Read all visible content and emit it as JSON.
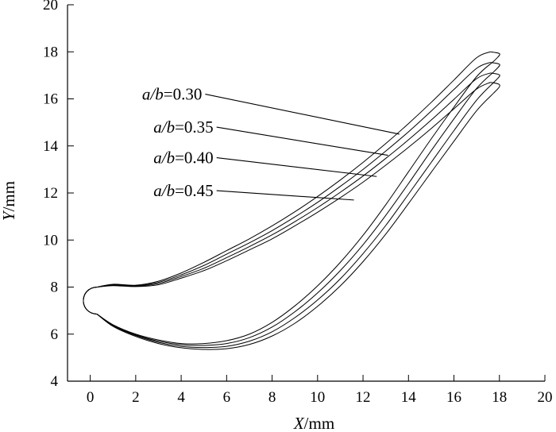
{
  "chart_data": {
    "type": "line",
    "title": "",
    "xlabel_var": "X",
    "xlabel_unit": "/mm",
    "ylabel_var": "Y",
    "ylabel_unit": "/mm",
    "xlim": [
      -1,
      20
    ],
    "ylim": [
      4,
      20
    ],
    "xticks": [
      0,
      2,
      4,
      6,
      8,
      10,
      12,
      14,
      16,
      18,
      20
    ],
    "yticks": [
      4,
      6,
      8,
      10,
      12,
      14,
      16,
      18,
      20
    ],
    "grid": false,
    "series": [
      {
        "name": "a/b=0.30",
        "label_var": "a/b",
        "label_val": "=0.30",
        "label_anchor": [
          3.6,
          16.2
        ],
        "leader_to": [
          13.6,
          14.5
        ],
        "suction_side": [
          [
            0.3,
            8.0
          ],
          [
            1,
            8.12
          ],
          [
            2,
            8.08
          ],
          [
            3,
            8.25
          ],
          [
            4,
            8.6
          ],
          [
            5,
            9.05
          ],
          [
            6,
            9.55
          ],
          [
            7,
            10.05
          ],
          [
            8,
            10.6
          ],
          [
            9,
            11.2
          ],
          [
            10,
            11.85
          ],
          [
            11,
            12.55
          ],
          [
            12,
            13.3
          ],
          [
            13,
            14.1
          ],
          [
            14,
            14.95
          ],
          [
            15,
            15.85
          ],
          [
            16,
            16.8
          ],
          [
            17,
            17.75
          ],
          [
            17.6,
            18.0
          ]
        ],
        "pressure_side": [
          [
            0.3,
            6.85
          ],
          [
            1,
            6.4
          ],
          [
            2,
            6.0
          ],
          [
            3,
            5.75
          ],
          [
            4,
            5.6
          ],
          [
            5,
            5.6
          ],
          [
            6,
            5.72
          ],
          [
            7,
            6.0
          ],
          [
            8,
            6.5
          ],
          [
            9,
            7.2
          ],
          [
            10,
            8.05
          ],
          [
            11,
            9.05
          ],
          [
            12,
            10.2
          ],
          [
            13,
            11.5
          ],
          [
            14,
            12.9
          ],
          [
            15,
            14.3
          ],
          [
            16,
            15.65
          ],
          [
            17,
            16.95
          ],
          [
            17.75,
            17.6
          ]
        ]
      },
      {
        "name": "a/b=0.35",
        "label_var": "a/b",
        "label_val": "=0.35",
        "label_anchor": [
          4.1,
          14.8
        ],
        "leader_to": [
          13.1,
          13.6
        ],
        "suction_side": [
          [
            0.3,
            8.0
          ],
          [
            1,
            8.1
          ],
          [
            2,
            8.06
          ],
          [
            3,
            8.2
          ],
          [
            4,
            8.52
          ],
          [
            5,
            8.92
          ],
          [
            6,
            9.4
          ],
          [
            7,
            9.88
          ],
          [
            8,
            10.4
          ],
          [
            9,
            10.98
          ],
          [
            10,
            11.6
          ],
          [
            11,
            12.28
          ],
          [
            12,
            13.0
          ],
          [
            13,
            13.78
          ],
          [
            14,
            14.6
          ],
          [
            15,
            15.48
          ],
          [
            16,
            16.4
          ],
          [
            17,
            17.3
          ],
          [
            17.6,
            17.55
          ]
        ],
        "pressure_side": [
          [
            0.3,
            6.85
          ],
          [
            1,
            6.38
          ],
          [
            2,
            5.97
          ],
          [
            3,
            5.7
          ],
          [
            4,
            5.55
          ],
          [
            5,
            5.52
          ],
          [
            6,
            5.6
          ],
          [
            7,
            5.85
          ],
          [
            8,
            6.3
          ],
          [
            9,
            6.95
          ],
          [
            10,
            7.75
          ],
          [
            11,
            8.7
          ],
          [
            12,
            9.8
          ],
          [
            13,
            11.05
          ],
          [
            14,
            12.4
          ],
          [
            15,
            13.8
          ],
          [
            16,
            15.15
          ],
          [
            17,
            16.45
          ],
          [
            17.75,
            17.15
          ]
        ]
      },
      {
        "name": "a/b=0.40",
        "label_var": "a/b",
        "label_val": "=0.40",
        "label_anchor": [
          4.1,
          13.5
        ],
        "leader_to": [
          12.6,
          12.7
        ],
        "suction_side": [
          [
            0.3,
            8.0
          ],
          [
            1,
            8.08
          ],
          [
            2,
            8.04
          ],
          [
            3,
            8.15
          ],
          [
            4,
            8.45
          ],
          [
            5,
            8.8
          ],
          [
            6,
            9.25
          ],
          [
            7,
            9.72
          ],
          [
            8,
            10.22
          ],
          [
            9,
            10.78
          ],
          [
            10,
            11.38
          ],
          [
            11,
            12.03
          ],
          [
            12,
            12.72
          ],
          [
            13,
            13.47
          ],
          [
            14,
            14.26
          ],
          [
            15,
            15.1
          ],
          [
            16,
            15.98
          ],
          [
            17,
            16.86
          ],
          [
            17.6,
            17.1
          ]
        ],
        "pressure_side": [
          [
            0.3,
            6.85
          ],
          [
            1,
            6.35
          ],
          [
            2,
            5.94
          ],
          [
            3,
            5.65
          ],
          [
            4,
            5.48
          ],
          [
            5,
            5.43
          ],
          [
            6,
            5.48
          ],
          [
            7,
            5.7
          ],
          [
            8,
            6.1
          ],
          [
            9,
            6.7
          ],
          [
            10,
            7.45
          ],
          [
            11,
            8.35
          ],
          [
            12,
            9.42
          ],
          [
            13,
            10.62
          ],
          [
            14,
            11.95
          ],
          [
            15,
            13.3
          ],
          [
            16,
            14.65
          ],
          [
            17,
            15.95
          ],
          [
            17.75,
            16.7
          ]
        ]
      },
      {
        "name": "a/b=0.45",
        "label_var": "a/b",
        "label_val": "=0.45",
        "label_anchor": [
          4.1,
          12.1
        ],
        "leader_to": [
          11.6,
          11.7
        ],
        "suction_side": [
          [
            0.3,
            8.0
          ],
          [
            1,
            8.06
          ],
          [
            2,
            8.02
          ],
          [
            3,
            8.1
          ],
          [
            4,
            8.38
          ],
          [
            5,
            8.7
          ],
          [
            6,
            9.12
          ],
          [
            7,
            9.58
          ],
          [
            8,
            10.05
          ],
          [
            9,
            10.6
          ],
          [
            10,
            11.18
          ],
          [
            11,
            11.8
          ],
          [
            12,
            12.46
          ],
          [
            13,
            13.18
          ],
          [
            14,
            13.94
          ],
          [
            15,
            14.74
          ],
          [
            16,
            15.58
          ],
          [
            17,
            16.42
          ],
          [
            17.6,
            16.7
          ]
        ],
        "pressure_side": [
          [
            0.3,
            6.85
          ],
          [
            1,
            6.33
          ],
          [
            2,
            5.9
          ],
          [
            3,
            5.6
          ],
          [
            4,
            5.42
          ],
          [
            5,
            5.35
          ],
          [
            6,
            5.38
          ],
          [
            7,
            5.56
          ],
          [
            8,
            5.92
          ],
          [
            9,
            6.46
          ],
          [
            10,
            7.18
          ],
          [
            11,
            8.05
          ],
          [
            12,
            9.08
          ],
          [
            13,
            10.25
          ],
          [
            14,
            11.55
          ],
          [
            15,
            12.88
          ],
          [
            16,
            14.2
          ],
          [
            17,
            15.5
          ],
          [
            17.75,
            16.25
          ]
        ]
      }
    ]
  }
}
